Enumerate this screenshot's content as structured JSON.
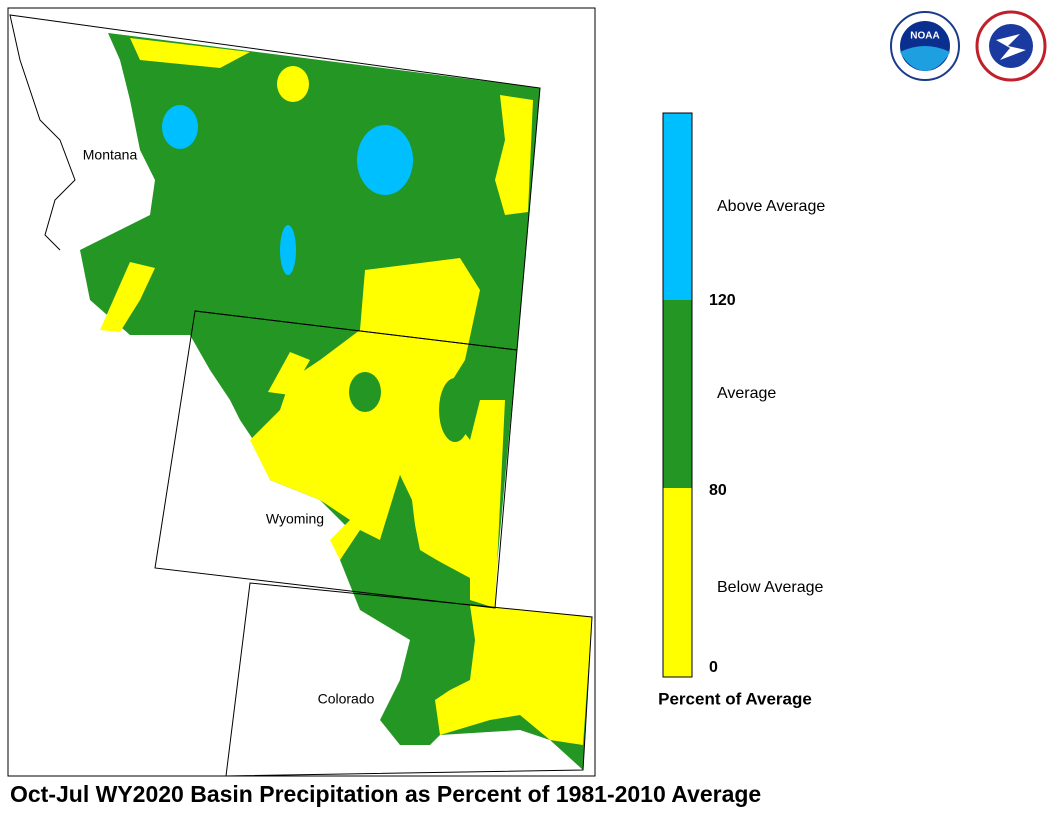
{
  "map": {
    "title": "Oct-Jul WY2020 Basin Precipitation as Percent of 1981-2010 Average",
    "states": [
      "Montana",
      "Wyoming",
      "Colorado"
    ],
    "logos": [
      "NOAA"
    ]
  },
  "legend": {
    "title": "Percent of Average",
    "classes": [
      {
        "label": "Above Average",
        "color": "#00bfff"
      },
      {
        "label": "Average",
        "color": "#239623"
      },
      {
        "label": "Below Average",
        "color": "#ffff00"
      }
    ],
    "ticks": [
      120,
      80,
      0
    ]
  }
}
